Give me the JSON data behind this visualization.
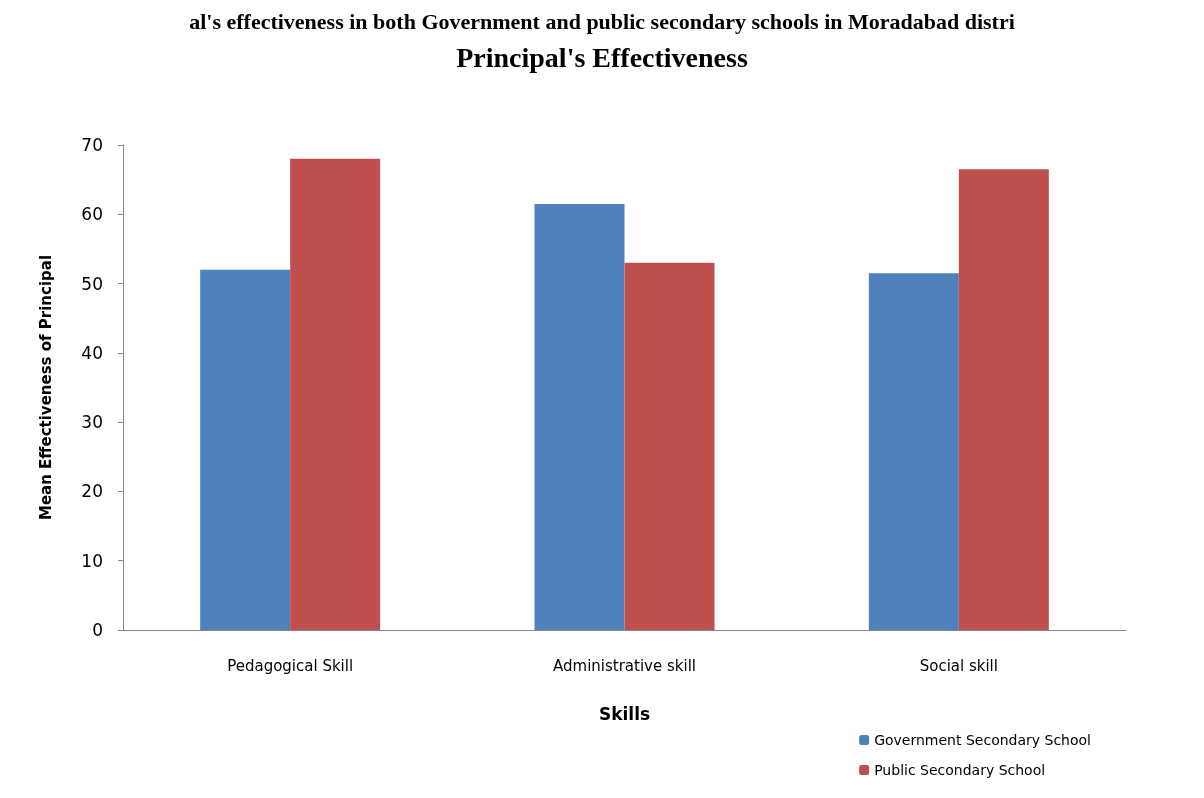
{
  "chart_data": {
    "type": "bar",
    "title": "Principal's Effectiveness",
    "xlabel": "Skills",
    "ylabel": "Mean Effectiveness of Principal",
    "annotations": [
      "al's effectiveness in both Government and public secondary schools in Moradabad distri"
    ],
    "categories": [
      "Pedagogical Skill",
      "Administrative skill",
      "Social skill"
    ],
    "series": [
      {
        "name": "Government Secondary School",
        "color": "#4f81bd",
        "values": [
          52,
          61.5,
          51.5
        ]
      },
      {
        "name": "Public Secondary School",
        "color": "#c0504d",
        "values": [
          68,
          53,
          66.5
        ]
      }
    ],
    "ylim": [
      0,
      70
    ],
    "yticks": [
      0,
      10,
      20,
      30,
      40,
      50,
      60,
      70
    ],
    "grid": false,
    "legend": "bottom right"
  }
}
